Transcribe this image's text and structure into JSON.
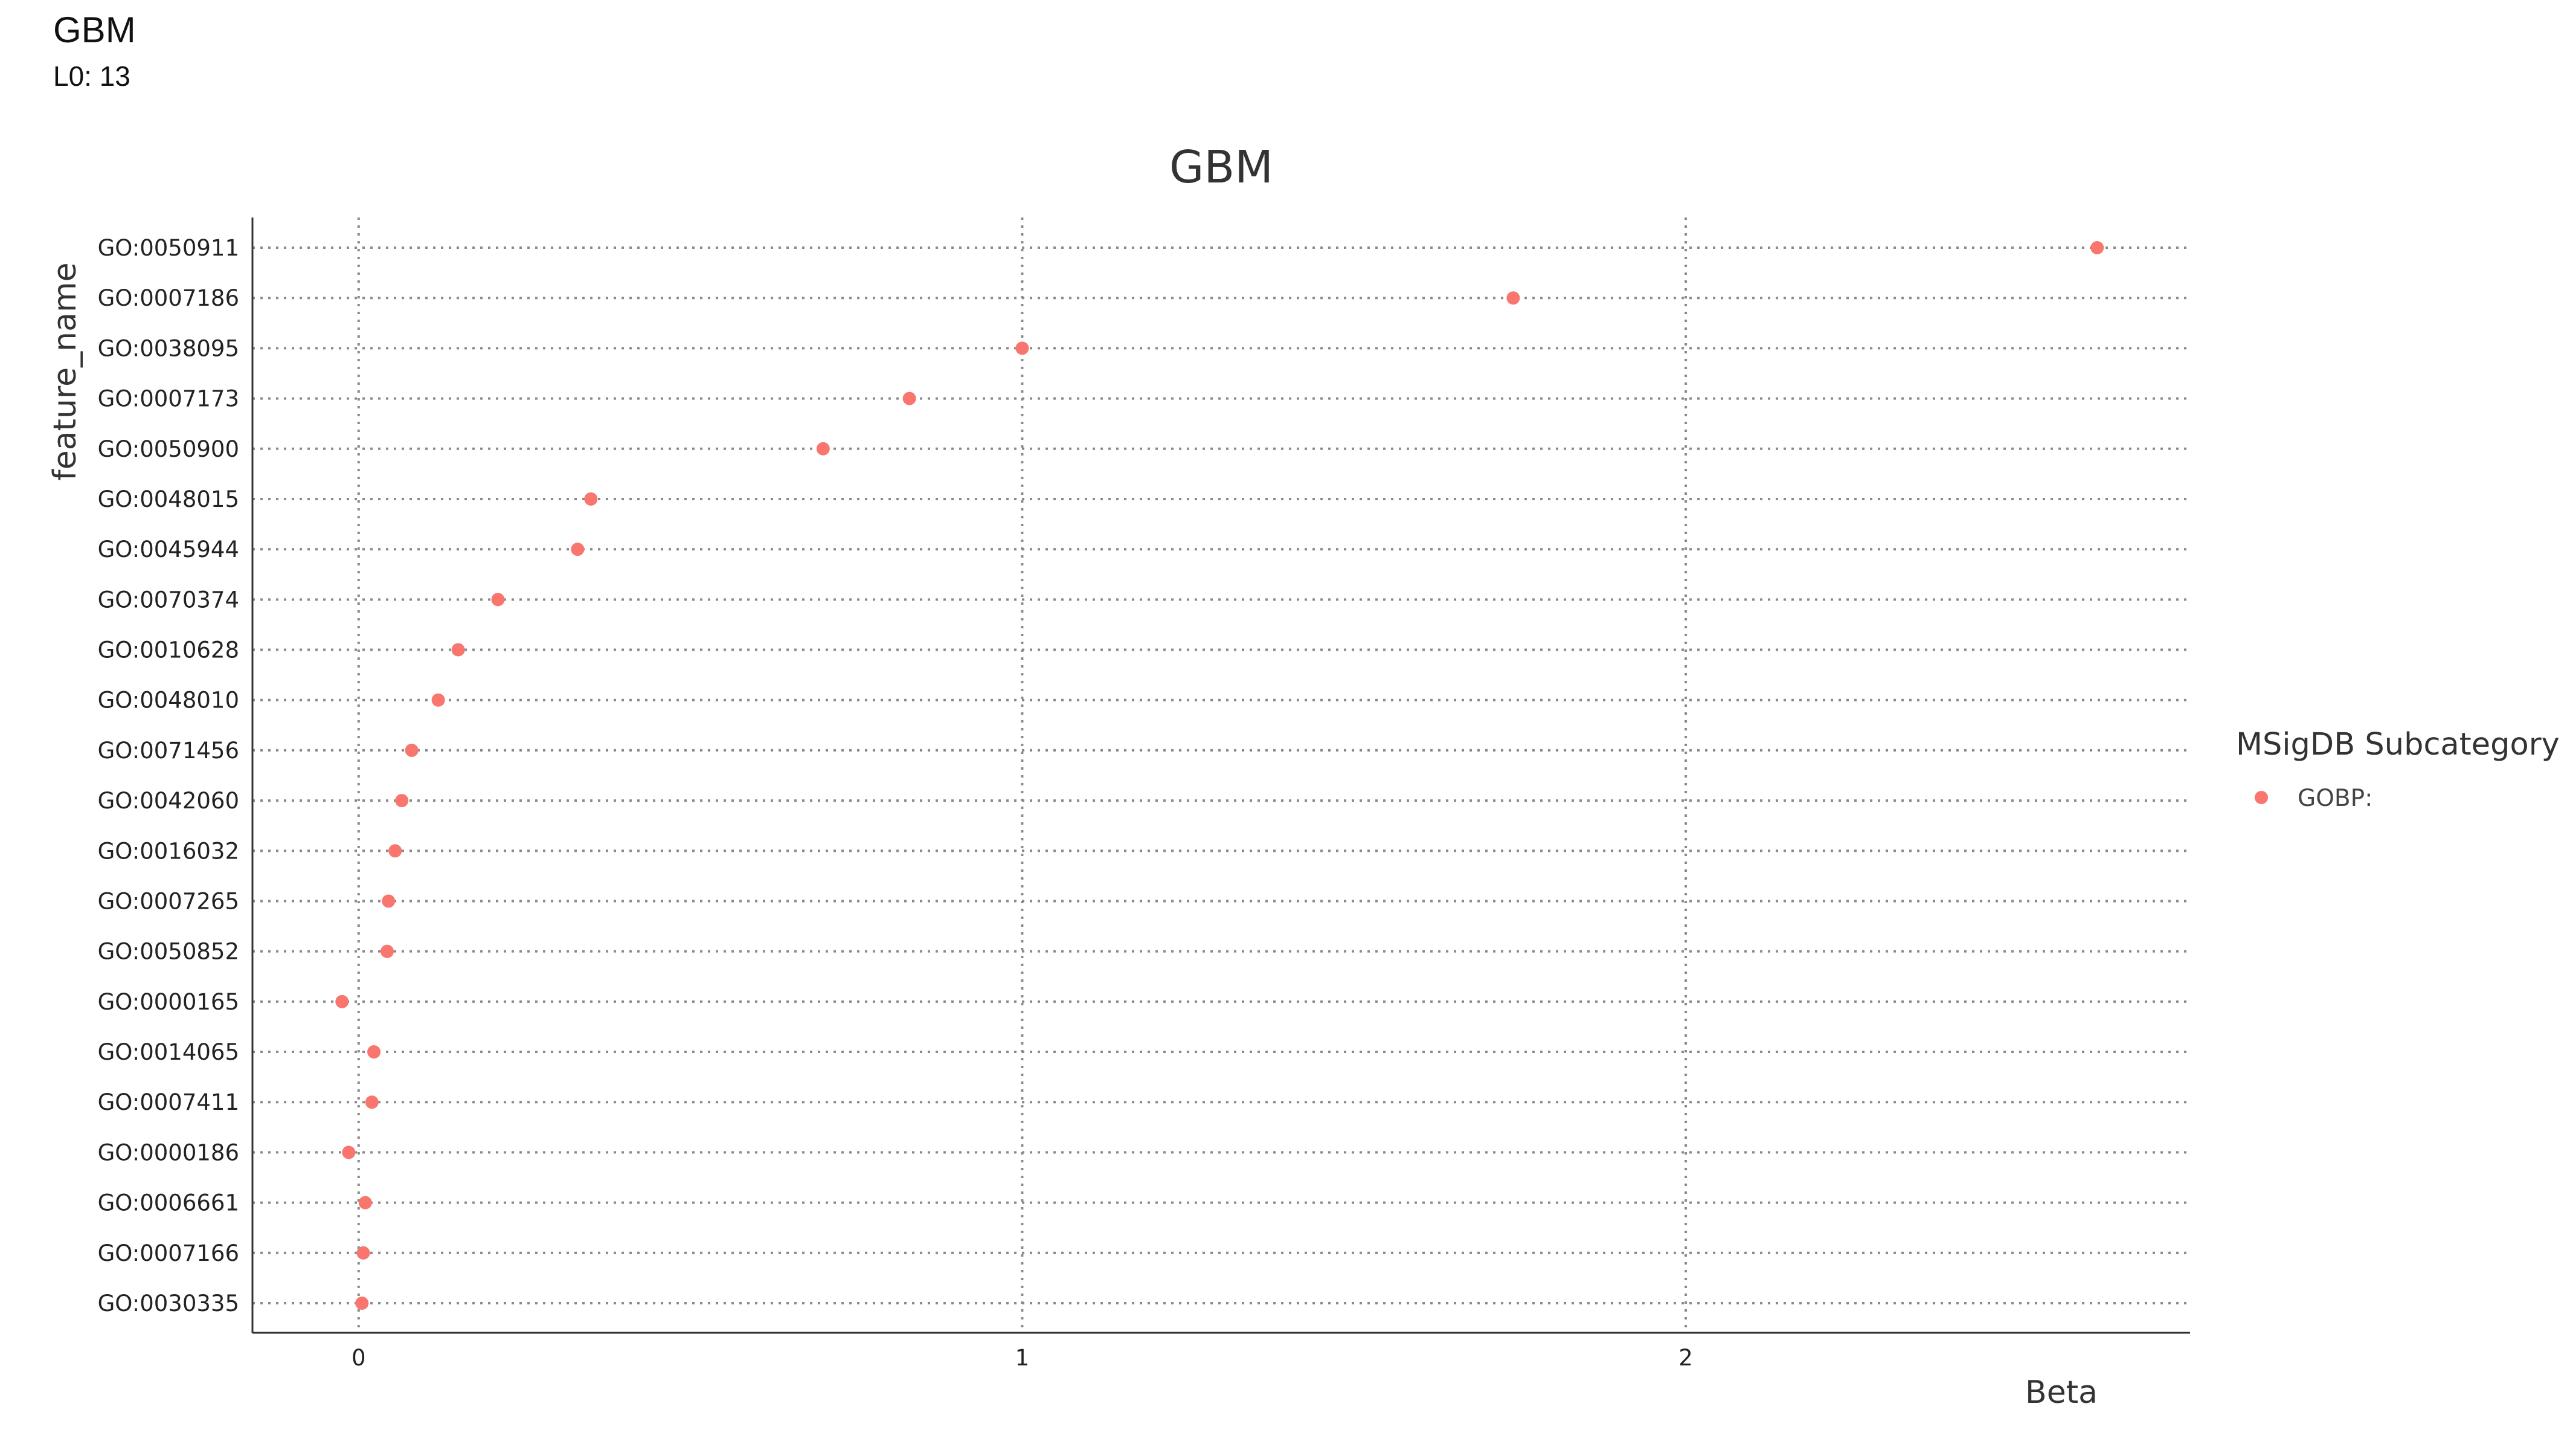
{
  "header": {
    "title": "GBM",
    "subtitle": "L0: 13"
  },
  "chart_data": {
    "type": "scatter",
    "title": "GBM",
    "xlabel": "Beta",
    "ylabel": "feature_name",
    "xlim": [
      -0.16,
      2.76
    ],
    "xticks": [
      0,
      1,
      2
    ],
    "grid": true,
    "point_color": "#F8766D",
    "legend": {
      "title": "MSigDB Subcategory",
      "position": "right",
      "entries": [
        {
          "label": "GOBP:",
          "color": "#F8766D"
        }
      ]
    },
    "categories": [
      "GO:0050911",
      "GO:0007186",
      "GO:0038095",
      "GO:0007173",
      "GO:0050900",
      "GO:0048015",
      "GO:0045944",
      "GO:0070374",
      "GO:0010628",
      "GO:0048010",
      "GO:0071456",
      "GO:0042060",
      "GO:0016032",
      "GO:0007265",
      "GO:0050852",
      "GO:0000165",
      "GO:0014065",
      "GO:0007411",
      "GO:0000186",
      "GO:0006661",
      "GO:0007166",
      "GO:0030335"
    ],
    "series": [
      {
        "name": "GOBP:",
        "values": [
          2.62,
          1.74,
          1.0,
          0.83,
          0.7,
          0.35,
          0.33,
          0.21,
          0.15,
          0.12,
          0.08,
          0.065,
          0.055,
          0.045,
          0.043,
          -0.025,
          0.023,
          0.02,
          -0.015,
          0.01,
          0.007,
          0.005
        ]
      }
    ]
  }
}
